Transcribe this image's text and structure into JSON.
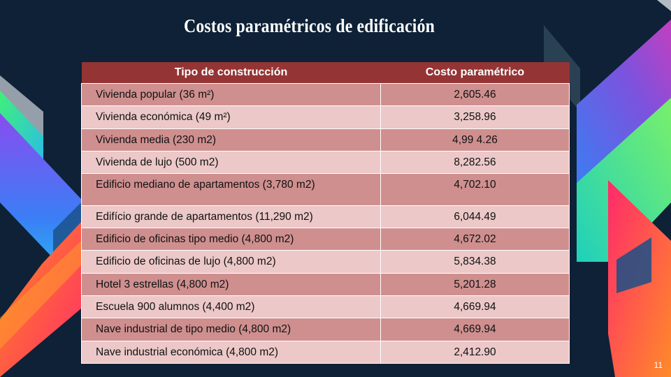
{
  "slide": {
    "title": "Costos paramétricos de edificación",
    "page_number": "11"
  },
  "table": {
    "headers": [
      "Tipo de construcción",
      "Costo paramétrico"
    ],
    "rows": [
      {
        "tipo": "Vivienda popular (36 m²)",
        "costo": "2,605.46"
      },
      {
        "tipo": "Vivienda económica (49 m²)",
        "costo": "3,258.96"
      },
      {
        "tipo": "Vivienda media (230 m2)",
        "costo": "4,99 4.26"
      },
      {
        "tipo": "Vivienda de lujo (500 m2)",
        "costo": "8,282.56"
      },
      {
        "tipo": "Edificio mediano de apartamentos (3,780 m2)",
        "costo": "4,702.10"
      },
      {
        "tipo": "Edifício grande de apartamentos (11,290 m2)",
        "costo": "6,044.49"
      },
      {
        "tipo": "Edificio de oficinas tipo medio (4,800 m2)",
        "costo": "4,672.02"
      },
      {
        "tipo": "Edificio de oficinas de lujo (4,800 m2)",
        "costo": "5,834.38"
      },
      {
        "tipo": "Hotel 3 estrellas (4,800 m2)",
        "costo": "5,201.28"
      },
      {
        "tipo": "Escuela 900 alumnos (4,400 m2)",
        "costo": "4,669.94"
      },
      {
        "tipo": "Nave industrial de tipo medio (4,800 m2)",
        "costo": "4,669.94"
      },
      {
        "tipo": "Nave industrial económica (4,800 m2)",
        "costo": "2,412.90"
      }
    ]
  },
  "colors": {
    "background": "#0e2136",
    "header": "#953434",
    "row_dark": "#cf8f8f",
    "row_light": "#ecc8c8"
  }
}
